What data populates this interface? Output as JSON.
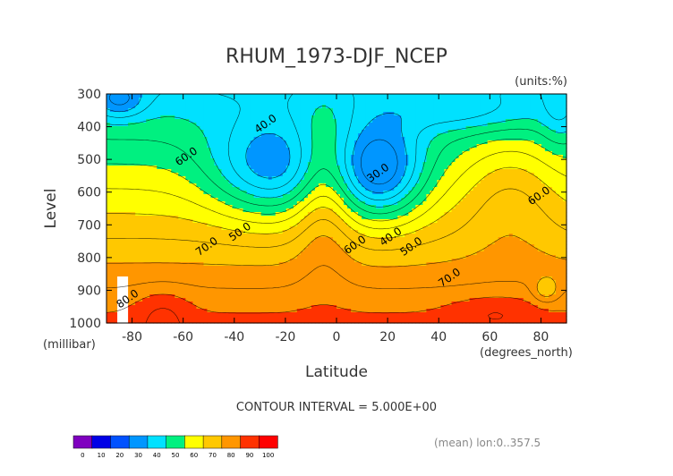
{
  "chart_data": {
    "type": "heatmap",
    "title": "RHUM_1973-DJF_NCEP",
    "units_label": "(units:%)",
    "xlabel": "Latitude",
    "ylabel": "Level",
    "x_unit_label": "(degrees_north)",
    "y_unit_label": "(millibar)",
    "contour_interval_label": "CONTOUR INTERVAL = 5.000E+00",
    "footer_label": "(mean) lon:0..357.5",
    "xlim": [
      -90,
      90
    ],
    "ylim": [
      1000,
      300
    ],
    "x_ticks": [
      -80,
      -60,
      -40,
      -20,
      0,
      20,
      40,
      60,
      80
    ],
    "x_tick_labels": [
      "-80",
      "-60",
      "-40",
      "-20",
      "0",
      "20",
      "40",
      "60",
      "80"
    ],
    "y_ticks": [
      300,
      400,
      500,
      600,
      700,
      800,
      900,
      1000
    ],
    "y_tick_labels": [
      "300",
      "400",
      "500",
      "600",
      "700",
      "800",
      "900",
      "1000"
    ],
    "colorbar": {
      "levels": [
        0,
        10,
        20,
        30,
        40,
        50,
        60,
        70,
        80,
        90,
        100
      ],
      "labels": [
        "0",
        "10",
        "20",
        "30",
        "40",
        "50",
        "60",
        "70",
        "80",
        "90",
        "100"
      ],
      "colors": [
        "#7f00bf",
        "#0000e6",
        "#0052ff",
        "#0096ff",
        "#00e1ff",
        "#00f080",
        "#ffff00",
        "#ffc800",
        "#ff9600",
        "#ff3200",
        "#ff0000"
      ]
    },
    "contour_labels": [
      {
        "text": "40.0",
        "lat": -27,
        "lev": 400
      },
      {
        "text": "60.0",
        "lat": -58,
        "lev": 500
      },
      {
        "text": "30.0",
        "lat": 17,
        "lev": 550
      },
      {
        "text": "60.0",
        "lat": 80,
        "lev": 620
      },
      {
        "text": "50.0",
        "lat": -37,
        "lev": 730
      },
      {
        "text": "40.0",
        "lat": 22,
        "lev": 745
      },
      {
        "text": "70.0",
        "lat": -50,
        "lev": 775
      },
      {
        "text": "60.0",
        "lat": 8,
        "lev": 770
      },
      {
        "text": "50.0",
        "lat": 30,
        "lev": 775
      },
      {
        "text": "70.0",
        "lat": 45,
        "lev": 870
      },
      {
        "text": "80.0",
        "lat": -81,
        "lev": 935
      }
    ]
  }
}
